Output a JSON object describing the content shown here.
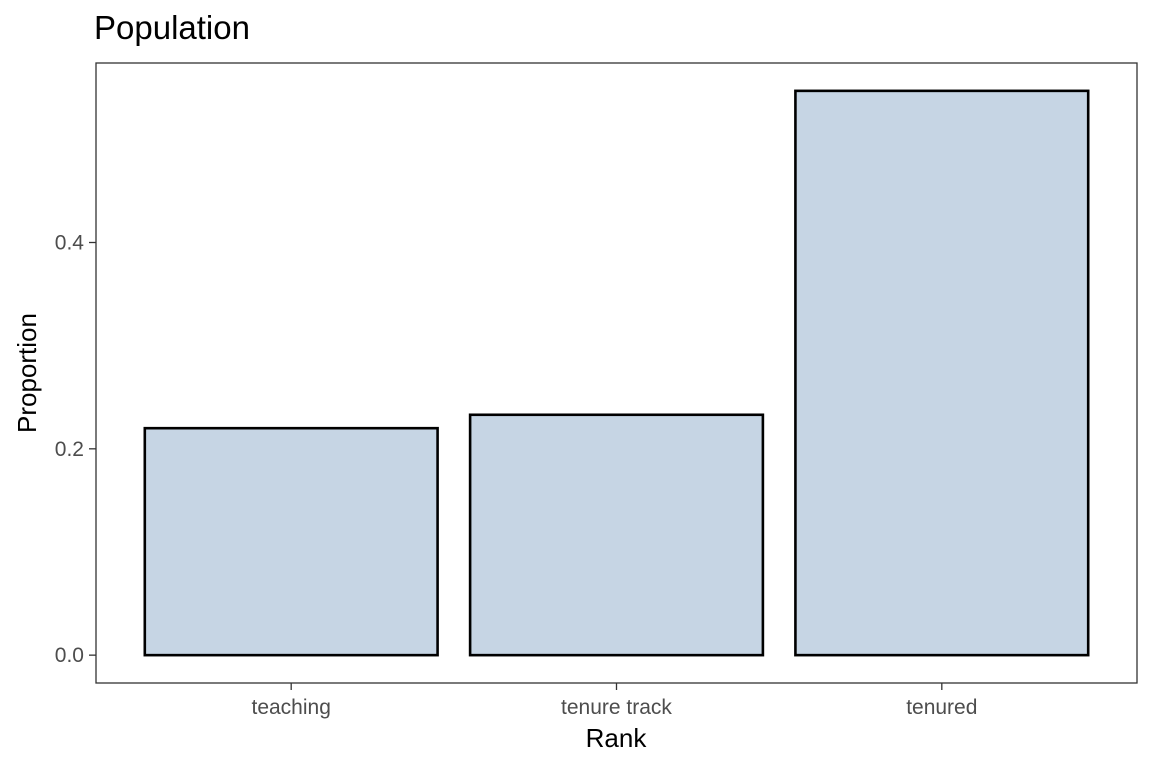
{
  "chart_data": {
    "type": "bar",
    "title": "Population",
    "xlabel": "Rank",
    "ylabel": "Proportion",
    "categories": [
      "teaching",
      "tenure track",
      "tenured"
    ],
    "values": [
      0.22,
      0.233,
      0.547
    ],
    "ylim": [
      -0.027,
      0.574
    ],
    "yticks": [
      0.0,
      0.2,
      0.4
    ],
    "ytick_labels": [
      "0.0",
      "0.2",
      "0.4"
    ],
    "bar_fill": "#c6d5e4",
    "bar_outline": "#000000",
    "grid": false,
    "legend": "none"
  }
}
